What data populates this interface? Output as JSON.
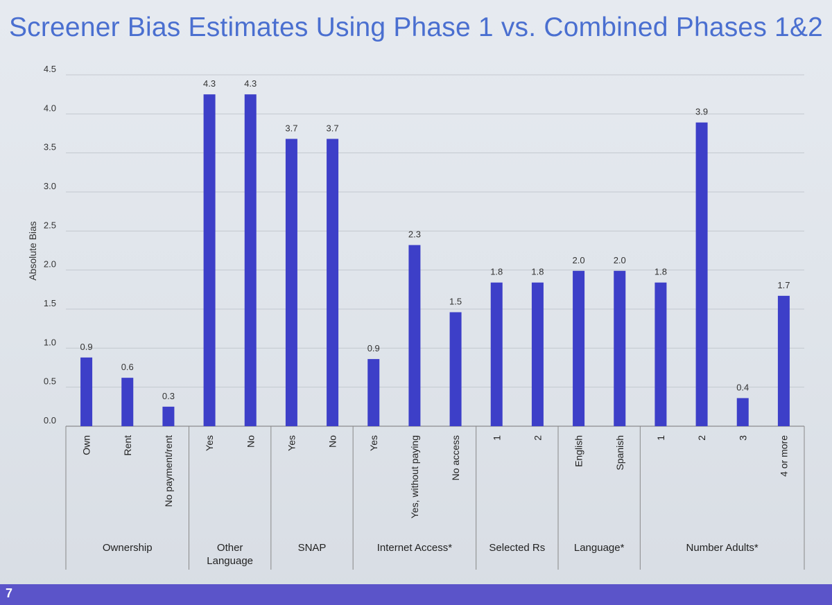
{
  "slide": {
    "title": "Screener Bias Estimates Using Phase 1 vs. Combined Phases 1&2",
    "number": "7"
  },
  "colors": {
    "bar": "#3d3fc8",
    "title": "#4a6fd0",
    "footer": "#5b54c9"
  },
  "chart_data": {
    "type": "bar",
    "title": "Screener Bias Estimates Using Phase 1 vs. Combined Phases 1&2",
    "ylabel": "Absolute Bias",
    "xlabel": "",
    "ylim": [
      0,
      4.5
    ],
    "yticks": [
      "0.0",
      "0.5",
      "1.0",
      "1.5",
      "2.0",
      "2.5",
      "3.0",
      "3.5",
      "4.0",
      "4.5"
    ],
    "grid": true,
    "categories": [
      "Own",
      "Rent",
      "No payment/rent",
      "Yes",
      "No",
      "Yes",
      "No",
      "Yes",
      "Yes, without paying",
      "No access",
      "1",
      "2",
      "English",
      "Spanish",
      "1",
      "2",
      "3",
      "4 or more"
    ],
    "values": [
      0.88,
      0.62,
      0.25,
      4.25,
      4.25,
      3.68,
      3.68,
      0.86,
      2.32,
      1.46,
      1.84,
      1.84,
      1.99,
      1.99,
      1.84,
      3.89,
      0.36,
      1.67
    ],
    "data_labels": [
      "0.9",
      "0.6",
      "0.3",
      "4.3",
      "4.3",
      "3.7",
      "3.7",
      "0.9",
      "2.3",
      "1.5",
      "1.8",
      "1.8",
      "2.0",
      "2.0",
      "1.8",
      "3.9",
      "0.4",
      "1.7"
    ],
    "groups": [
      {
        "name": "Ownership",
        "count": 3
      },
      {
        "name": "Other Language",
        "count": 2
      },
      {
        "name": "SNAP",
        "count": 2
      },
      {
        "name": "Internet Access*",
        "count": 3
      },
      {
        "name": "Selected Rs",
        "count": 2
      },
      {
        "name": "Language*",
        "count": 2
      },
      {
        "name": "Number Adults*",
        "count": 4
      }
    ]
  }
}
